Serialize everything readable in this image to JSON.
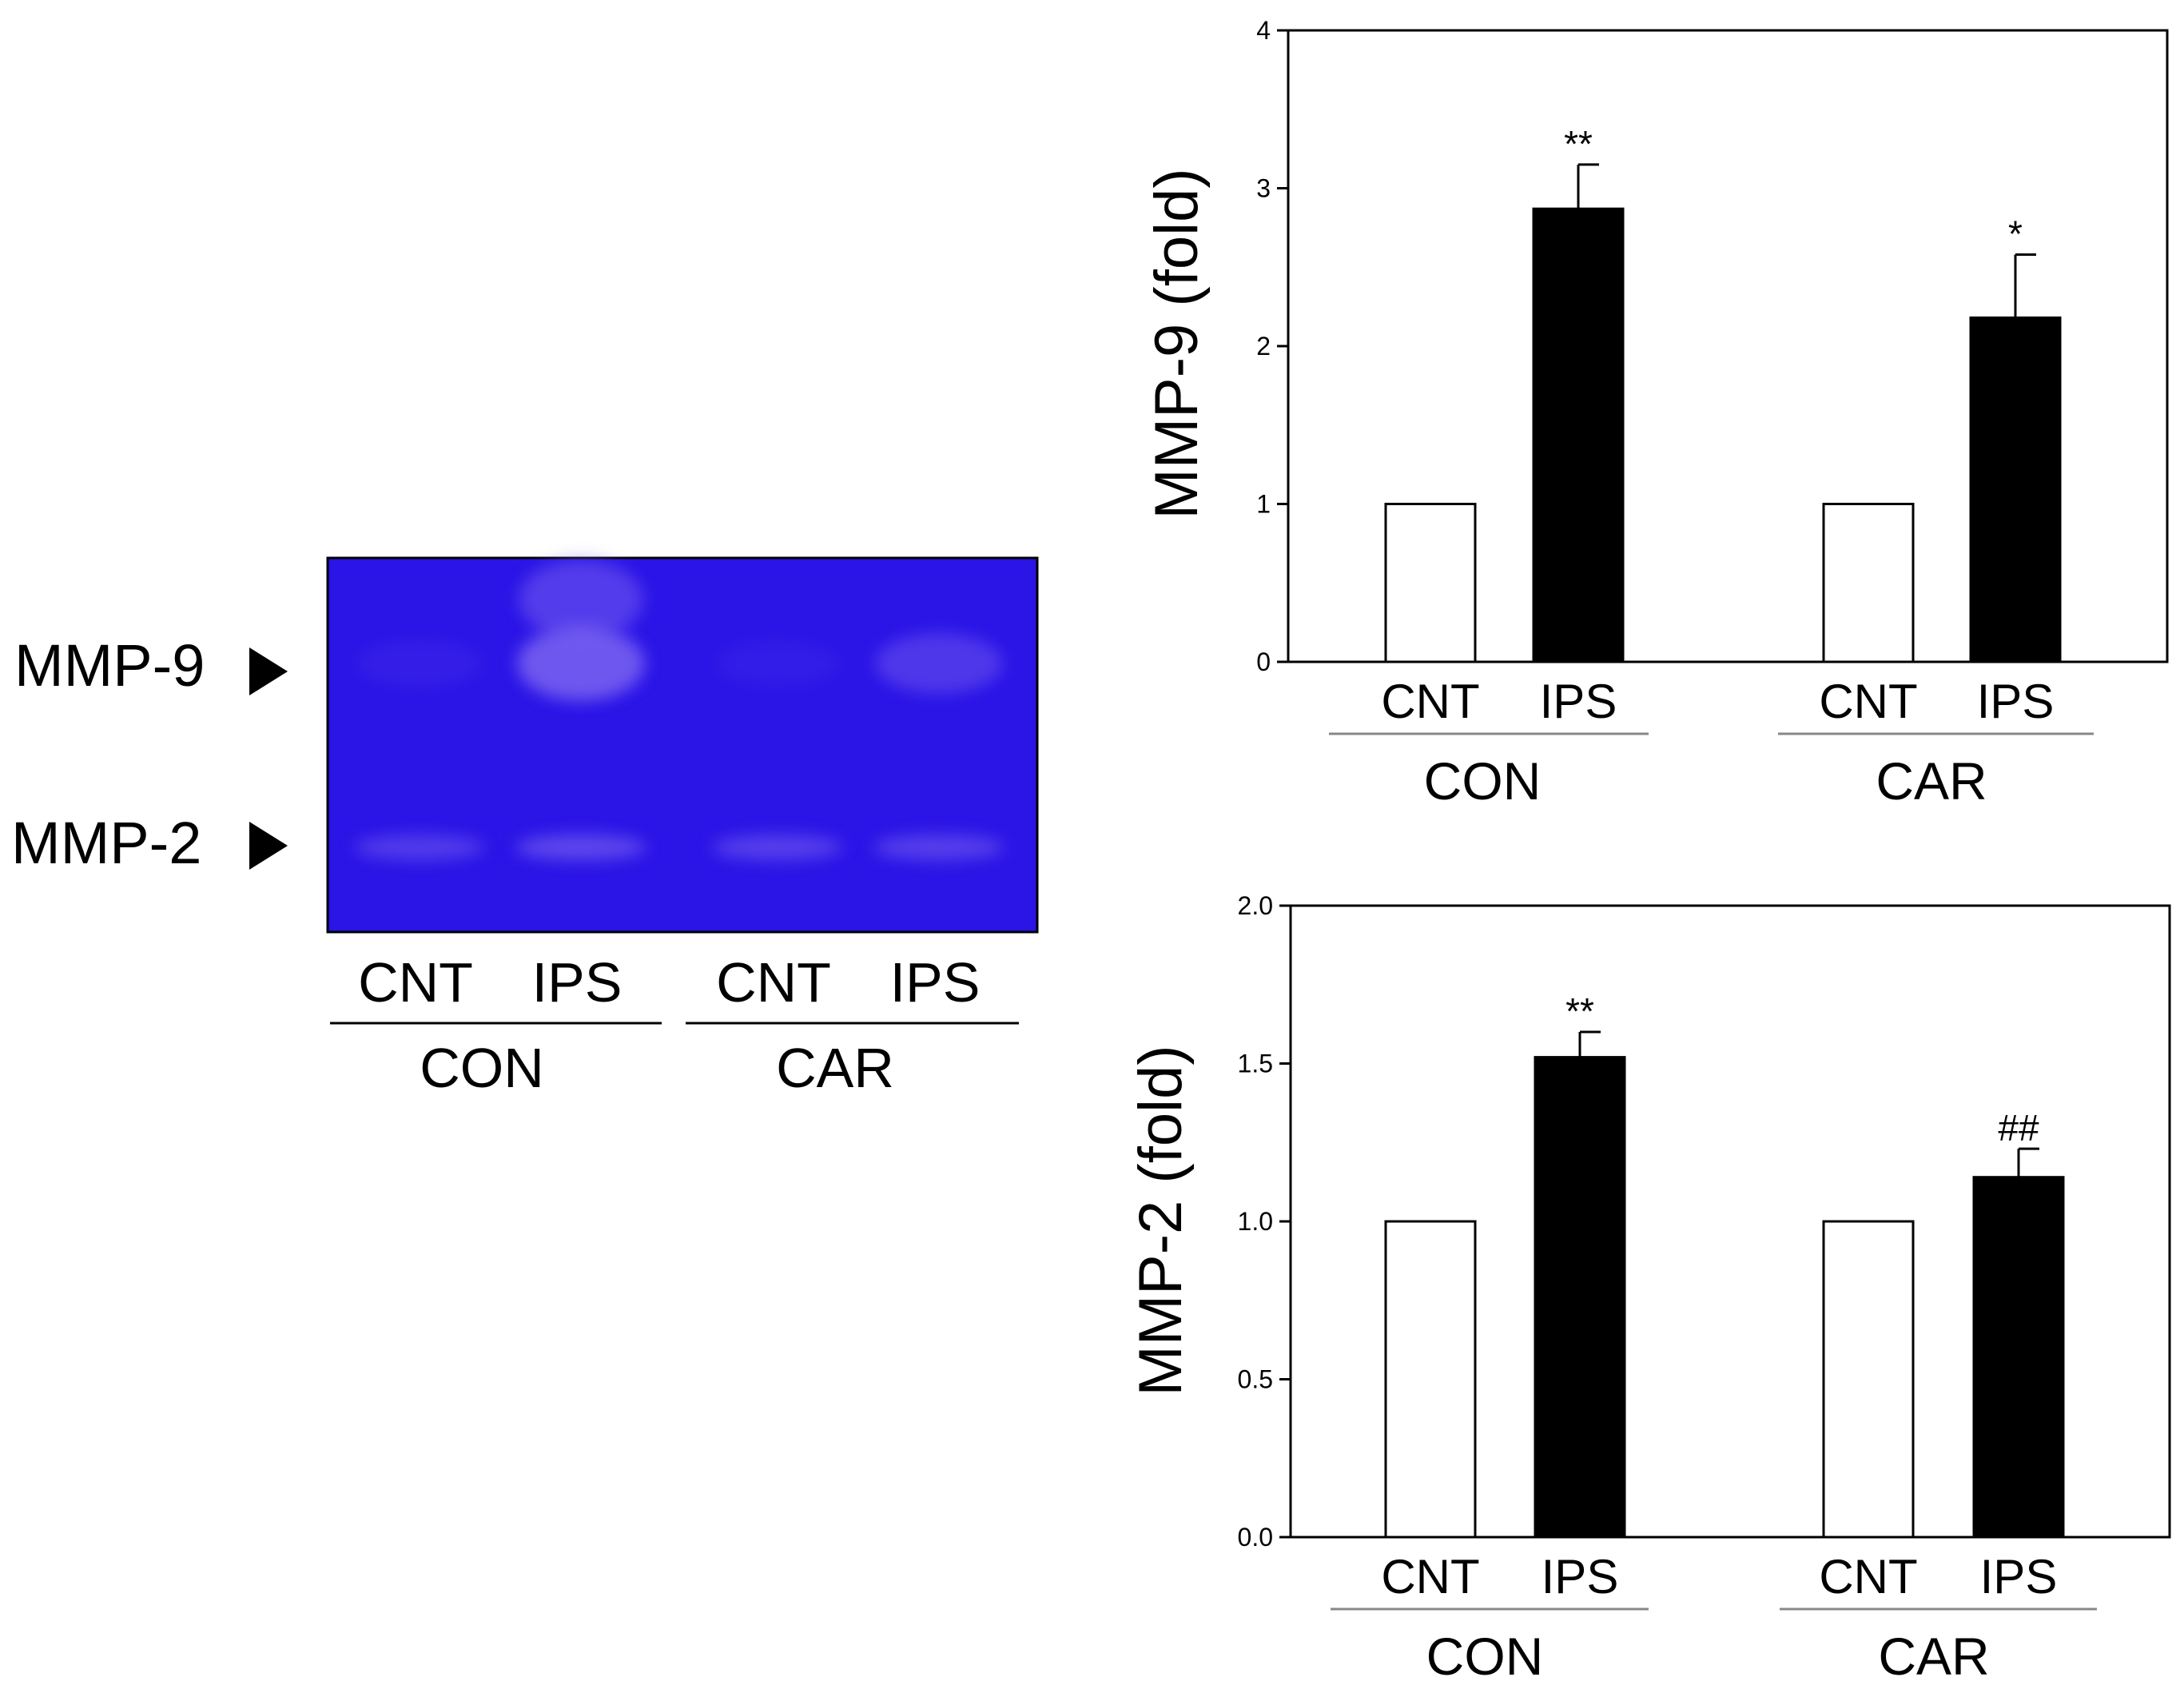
{
  "gel": {
    "band_labels": [
      "MMP-9",
      "MMP-2"
    ],
    "lanes": [
      "CNT",
      "IPS",
      "CNT",
      "IPS"
    ],
    "groups": [
      "CON",
      "CAR"
    ],
    "gel_color": "#2a14e6",
    "band_color": "#7a64f0",
    "mmp9_band_intensity": [
      0.12,
      0.85,
      0.1,
      0.45
    ],
    "mmp2_band_intensity": [
      0.5,
      0.65,
      0.55,
      0.55
    ]
  },
  "chart_data": [
    {
      "type": "bar",
      "ylabel": "MMP-9 (fold)",
      "ylim": [
        0,
        4
      ],
      "yticks": [
        "0",
        "1",
        "2",
        "3",
        "4"
      ],
      "categories": [
        "CNT",
        "IPS",
        "CNT",
        "IPS"
      ],
      "groups": [
        "CON",
        "CAR"
      ],
      "values": [
        1.0,
        2.87,
        1.0,
        2.18
      ],
      "errors": [
        0,
        0.28,
        0,
        0.4
      ],
      "fill": [
        "#ffffff",
        "#000000",
        "#ffffff",
        "#000000"
      ],
      "annotations": [
        "",
        "**",
        "",
        "*"
      ]
    },
    {
      "type": "bar",
      "ylabel": "MMP-2 (fold)",
      "ylim": [
        0,
        2
      ],
      "yticks": [
        "0.0",
        "0.5",
        "1.0",
        "1.5",
        "2.0"
      ],
      "categories": [
        "CNT",
        "IPS",
        "CNT",
        "IPS"
      ],
      "groups": [
        "CON",
        "CAR"
      ],
      "values": [
        1.0,
        1.52,
        1.0,
        1.14
      ],
      "errors": [
        0,
        0.08,
        0,
        0.09
      ],
      "fill": [
        "#ffffff",
        "#000000",
        "#ffffff",
        "#000000"
      ],
      "annotations": [
        "",
        "**",
        "",
        "##"
      ]
    }
  ]
}
